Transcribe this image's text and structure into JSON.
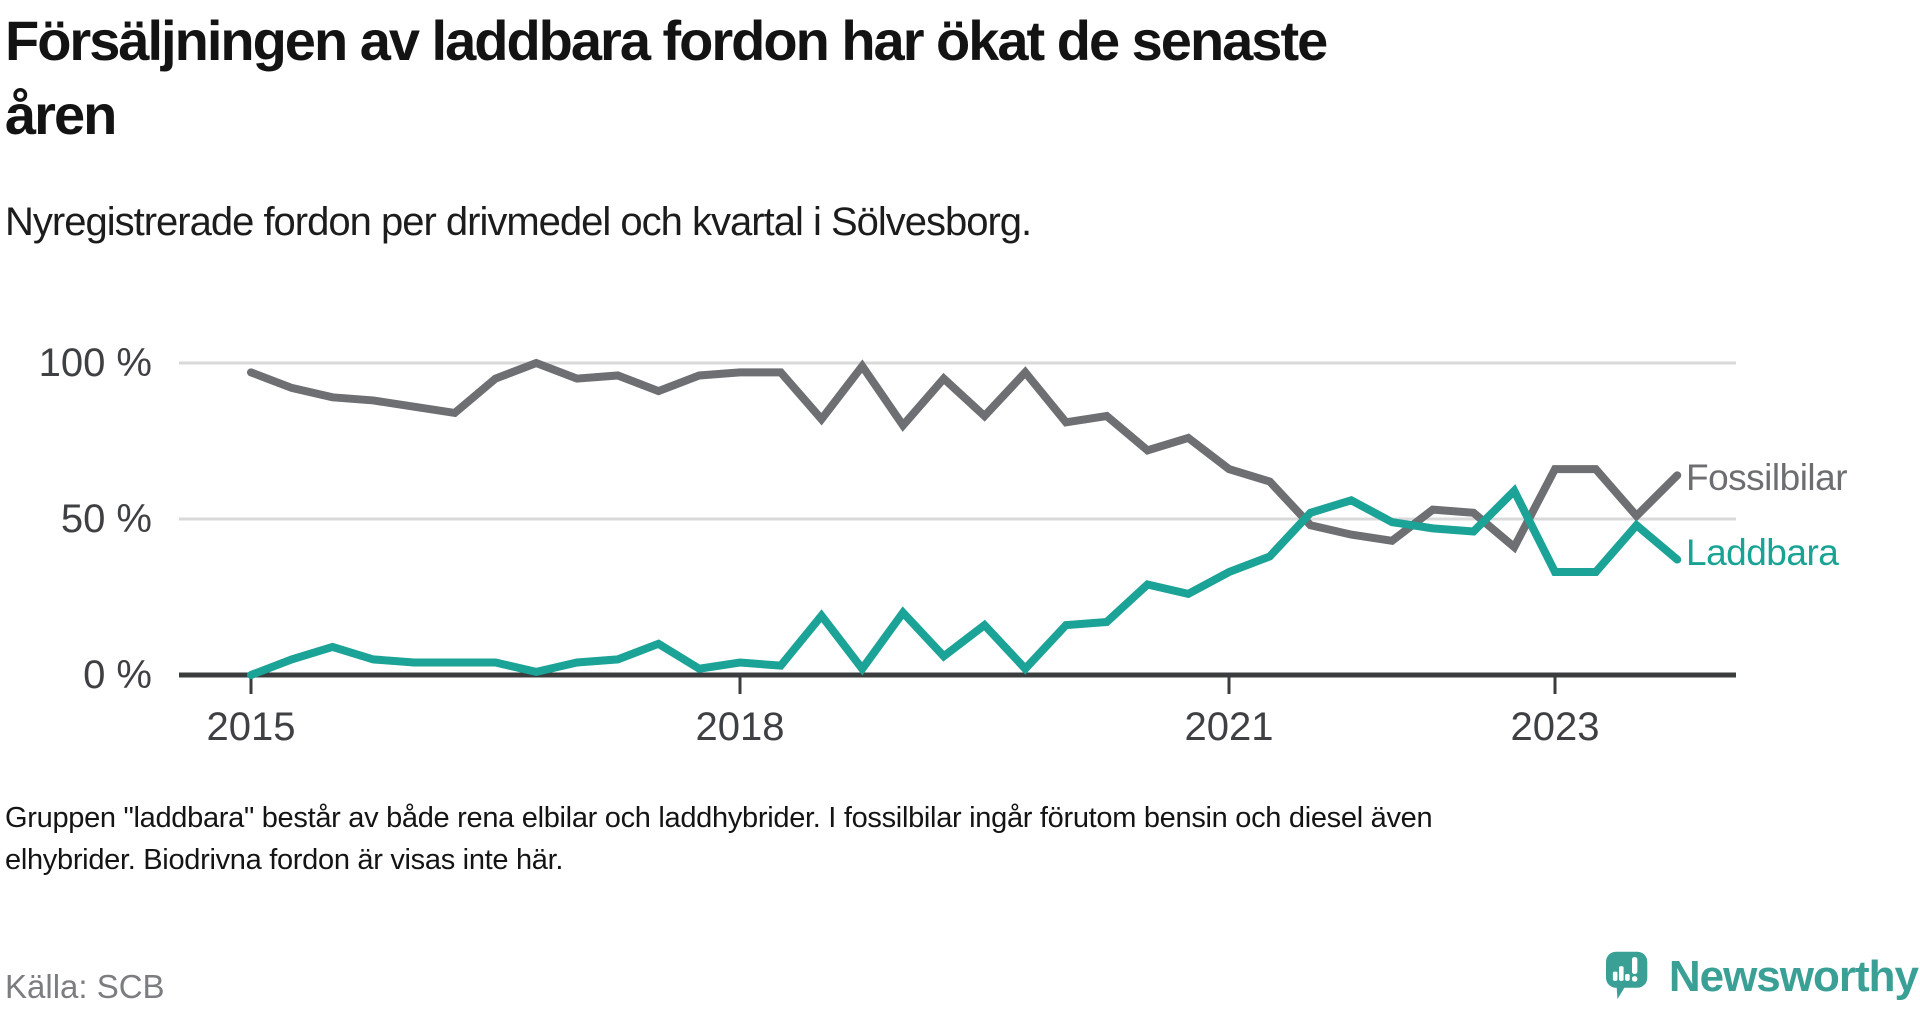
{
  "header": {
    "title_line1": "Försäljningen av laddbara fordon har ökat de senaste",
    "title_line2": "åren",
    "subtitle": "Nyregistrerade fordon per drivmedel och kvartal i Sölvesborg."
  },
  "chart_data": {
    "type": "line",
    "title": "Nyregistrerade fordon per drivmedel och kvartal i Sölvesborg",
    "x_unit": "quarter",
    "x_start": "2015 Q1",
    "x_end": "2023 Q4",
    "x_ticks": [
      {
        "label": "2015",
        "quarter_index": 0
      },
      {
        "label": "2018",
        "quarter_index": 12
      },
      {
        "label": "2021",
        "quarter_index": 24
      },
      {
        "label": "2023",
        "quarter_index": 32
      }
    ],
    "y_ticks": [
      {
        "label": "0 %",
        "value": 0
      },
      {
        "label": "50 %",
        "value": 50
      },
      {
        "label": "100 %",
        "value": 100
      }
    ],
    "y_range": [
      0,
      105
    ],
    "grid": true,
    "legend_position": "right-of-line-ends",
    "series": [
      {
        "name": "Fossilbilar",
        "color": "#6e6f72",
        "values": [
          97,
          92,
          89,
          88,
          86,
          84,
          95,
          100,
          95,
          96,
          91,
          96,
          97,
          97,
          82,
          99,
          80,
          95,
          83,
          97,
          81,
          83,
          72,
          76,
          66,
          62,
          48,
          45,
          43,
          53,
          52,
          41,
          66,
          66,
          51,
          64
        ]
      },
      {
        "name": "Laddbara",
        "color": "#1aa396",
        "values": [
          0,
          5,
          9,
          5,
          4,
          4,
          4,
          1,
          4,
          5,
          10,
          2,
          4,
          3,
          19,
          2,
          20,
          6,
          16,
          2,
          16,
          17,
          29,
          26,
          33,
          38,
          52,
          56,
          49,
          47,
          46,
          59,
          33,
          33,
          48,
          37
        ]
      }
    ]
  },
  "footnote": {
    "line1": "Gruppen \"laddbara\" består av både rena elbilar och laddhybrider. I fossilbilar ingår förutom bensin och diesel även",
    "line2": "elhybrider. Biodrivna fordon är visas inte här."
  },
  "source": {
    "label": "Källa: SCB"
  },
  "logo": {
    "text": "Newsworthy",
    "icon": "speech-bubble-bar-chart-icon"
  },
  "colors": {
    "fossil_line": "#6e6f72",
    "laddbara_line": "#1aa396",
    "grid_line": "#d9d9d9",
    "axis_line": "#3b3c3e",
    "axis_text": "#3f4043",
    "legend_fossil_text": "#6d6e72",
    "legend_laddbara_text": "#18a394",
    "logo_teal": "#3aa096"
  }
}
